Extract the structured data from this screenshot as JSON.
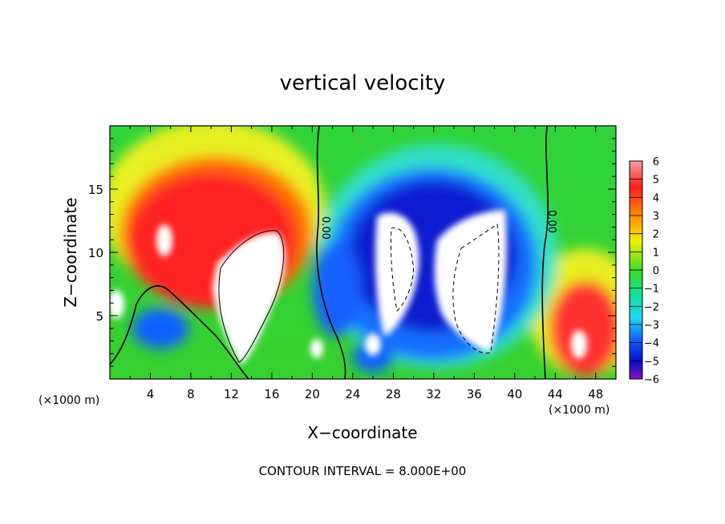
{
  "chart_data": {
    "type": "heatmap",
    "title": "vertical velocity",
    "xlabel": "X−coordinate",
    "ylabel": "Z−coordinate",
    "x_unit_label": "(×1000 m)",
    "y_unit_label": "(×1000 m)",
    "xlim": [
      0,
      50
    ],
    "ylim": [
      0,
      20
    ],
    "x_ticks": [
      4,
      8,
      12,
      16,
      20,
      24,
      28,
      32,
      36,
      40,
      44,
      48
    ],
    "y_ticks": [
      5,
      10,
      15
    ],
    "colorbar": {
      "ticks": [
        6,
        5,
        4,
        3,
        2,
        1,
        0,
        -1,
        -2,
        -3,
        -4,
        -5,
        -6
      ],
      "tick_labels": [
        "6",
        "5",
        "4",
        "3",
        "2",
        "1",
        "0",
        "−1",
        "−2",
        "−3",
        "−4",
        "−5",
        "−6"
      ],
      "range": [
        -6,
        6
      ]
    },
    "contour_labels": [
      "0.00",
      "0.00"
    ],
    "footer": "CONTOUR INTERVAL = 8.000E+00",
    "grid": false,
    "legend": "colorbar-right"
  }
}
